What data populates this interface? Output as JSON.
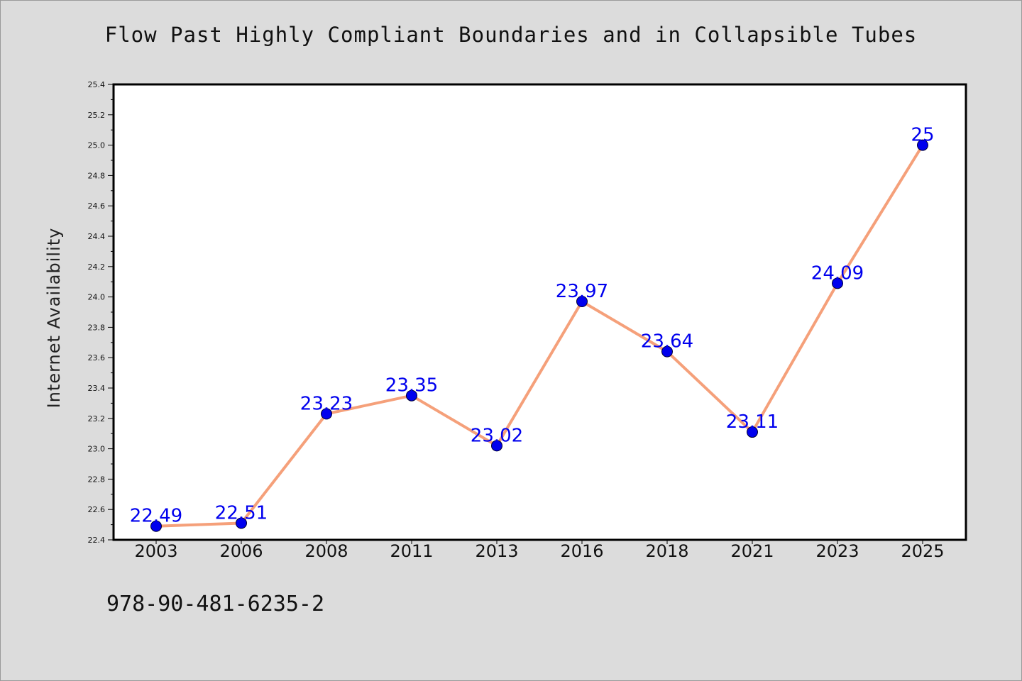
{
  "page": {
    "background": "#dcdcdc",
    "isbn_text": "978-90-481-6235-2"
  },
  "chart_data": {
    "type": "line",
    "title": "Flow Past Highly Compliant Boundaries and in Collapsible Tubes",
    "xlabel": "",
    "ylabel": "Internet Availability",
    "categories": [
      "2003",
      "2006",
      "2008",
      "2011",
      "2013",
      "2016",
      "2018",
      "2021",
      "2023",
      "2025"
    ],
    "series": [
      {
        "values": [
          22.49,
          22.51,
          23.23,
          23.35,
          23.02,
          23.97,
          23.64,
          23.11,
          24.09,
          25.0
        ],
        "data_labels": [
          "22.49",
          "22.51",
          "23.23",
          "23.35",
          "23.02",
          "23.97",
          "23.64",
          "23.11",
          "24.09",
          "25"
        ],
        "line_color": "#f5a07a",
        "marker_color": "#0000ee",
        "label_color": "#0000ee"
      }
    ],
    "ylim": [
      22.4,
      25.4
    ],
    "yticks": [
      "22.4",
      "22.6",
      "22.8",
      "23.0",
      "23.2",
      "23.4",
      "23.6",
      "23.8",
      "24.0",
      "24.2",
      "24.4",
      "24.6",
      "24.8",
      "25.0",
      "25.2",
      "25.4"
    ],
    "grid": false,
    "legend": "none",
    "plot_background": "#ffffff"
  }
}
